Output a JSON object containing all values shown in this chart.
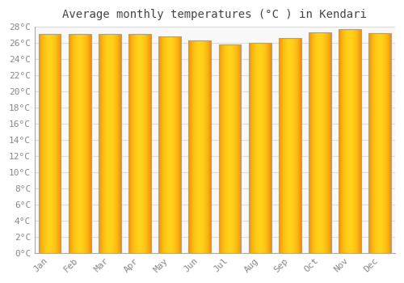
{
  "title": "Average monthly temperatures (Â°C ) in Kendari",
  "title_text": "Average monthly temperatures (°C ) in Kendari",
  "months": [
    "Jan",
    "Feb",
    "Mar",
    "Apr",
    "May",
    "Jun",
    "Jul",
    "Aug",
    "Sep",
    "Oct",
    "Nov",
    "Dec"
  ],
  "values": [
    27.1,
    27.1,
    27.1,
    27.1,
    26.8,
    26.3,
    25.8,
    26.0,
    26.6,
    27.3,
    27.7,
    27.2
  ],
  "bar_color_center": "#FFD000",
  "bar_color_edge": "#F09000",
  "bar_border_color": "#B0A080",
  "ylim": [
    0,
    28
  ],
  "ytick_step": 2,
  "background_color": "#FFFFFF",
  "plot_bg_color": "#F8F8F8",
  "grid_color": "#DDDDDD",
  "title_fontsize": 10,
  "tick_fontsize": 8,
  "tick_color": "#888888",
  "font_family": "monospace"
}
